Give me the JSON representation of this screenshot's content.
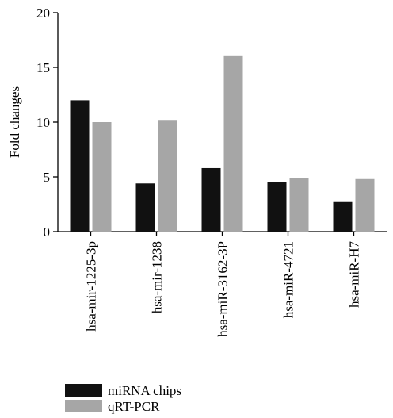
{
  "chart_data": {
    "type": "bar",
    "categories": [
      "hsa-mir-1225-3p",
      "hsa-mir-1238",
      "hsa-miR-3162-3P",
      "hsa-miR-4721",
      "hsa-miR-H7"
    ],
    "series": [
      {
        "name": "miRNA chips",
        "values": [
          12.0,
          4.4,
          5.8,
          4.5,
          2.7
        ],
        "color": "#111111"
      },
      {
        "name": "qRT-PCR",
        "values": [
          10.0,
          10.2,
          16.1,
          4.9,
          4.8
        ],
        "color": "#a6a6a6"
      }
    ],
    "title": "",
    "xlabel": "",
    "ylabel": "Fold changes",
    "ylim": [
      0,
      20
    ],
    "yticks": [
      "0",
      "5",
      "10",
      "15",
      "20"
    ],
    "grid": false,
    "legend": "bottom-left"
  }
}
